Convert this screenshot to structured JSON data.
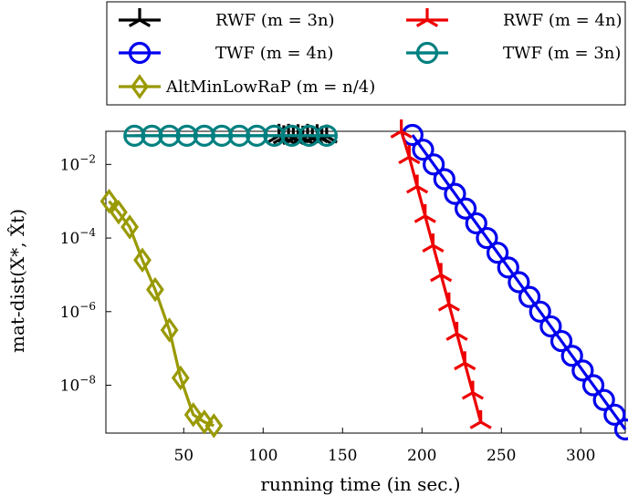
{
  "chart_data": {
    "type": "line",
    "title": "",
    "xlabel": "running time (in sec.)",
    "ylabel": "mat-dist(X*, X̂t)",
    "xlim": [
      1,
      328
    ],
    "ylim_log10": [
      -9.3,
      -1.1
    ],
    "y_scale": "log",
    "x_ticks": [
      50,
      100,
      150,
      200,
      250,
      300
    ],
    "x_tick_labels": [
      "50",
      "100",
      "150",
      "200",
      "250",
      "300"
    ],
    "y_ticks_log10": [
      -2,
      -4,
      -6,
      -8
    ],
    "y_tick_labels": [
      {
        "base": "10",
        "exp": "−2"
      },
      {
        "base": "10",
        "exp": "−4"
      },
      {
        "base": "10",
        "exp": "−6"
      },
      {
        "base": "10",
        "exp": "−8"
      }
    ],
    "grid": false,
    "legend_position": "top",
    "series": [
      {
        "name": "RWF (m = 3n)",
        "marker": "tri",
        "color": "#000000",
        "x": [
          110,
          113,
          116,
          119,
          122,
          125,
          128,
          131,
          134,
          137,
          140
        ],
        "y_log10": [
          -1.22,
          -1.26,
          -1.22,
          -1.28,
          -1.23,
          -1.27,
          -1.22,
          -1.27,
          -1.23,
          -1.28,
          -1.24
        ]
      },
      {
        "name": "TWF (m = 4n)",
        "marker": "circle",
        "color": "#0000ee",
        "x": [
          194,
          200.7,
          207.4,
          214.1,
          220.8,
          227.5,
          234.2,
          240.9,
          247.6,
          254.3,
          261.0,
          267.7,
          274.4,
          281.1,
          287.8,
          294.5,
          301.2,
          307.9,
          314.6,
          321.3,
          328
        ],
        "y_log10": [
          -1.2,
          -1.6,
          -2.0,
          -2.4,
          -2.8,
          -3.2,
          -3.6,
          -4.0,
          -4.4,
          -4.8,
          -5.2,
          -5.6,
          -6.0,
          -6.4,
          -6.8,
          -7.2,
          -7.6,
          -8.0,
          -8.4,
          -8.8,
          -9.2
        ]
      },
      {
        "name": "RWF (m = 4n)",
        "marker": "tri",
        "color": "#ee0000",
        "x": [
          187,
          192,
          197,
          202,
          207,
          212,
          217,
          222,
          227,
          232,
          237
        ],
        "y_log10": [
          -1.1,
          -1.8,
          -2.6,
          -3.4,
          -4.2,
          -5.0,
          -5.8,
          -6.6,
          -7.4,
          -8.2,
          -9.0
        ]
      },
      {
        "name": "TWF (m = 3n)",
        "marker": "circle-line",
        "color": "#008080",
        "x": [
          19,
          30,
          41,
          52,
          63,
          74,
          85,
          96,
          107,
          118,
          129,
          140
        ],
        "y_log10": [
          -1.22,
          -1.22,
          -1.22,
          -1.22,
          -1.22,
          -1.22,
          -1.22,
          -1.22,
          -1.22,
          -1.22,
          -1.22,
          -1.22
        ]
      },
      {
        "name": "AltMinLowRaP (m = n/4)",
        "marker": "diamond",
        "color": "#999900",
        "x": [
          3,
          9,
          16,
          24,
          32,
          41,
          48,
          56,
          63,
          69
        ],
        "y_log10": [
          -3.0,
          -3.3,
          -3.7,
          -4.6,
          -5.4,
          -6.5,
          -7.8,
          -8.8,
          -9.0,
          -9.1
        ]
      }
    ]
  }
}
